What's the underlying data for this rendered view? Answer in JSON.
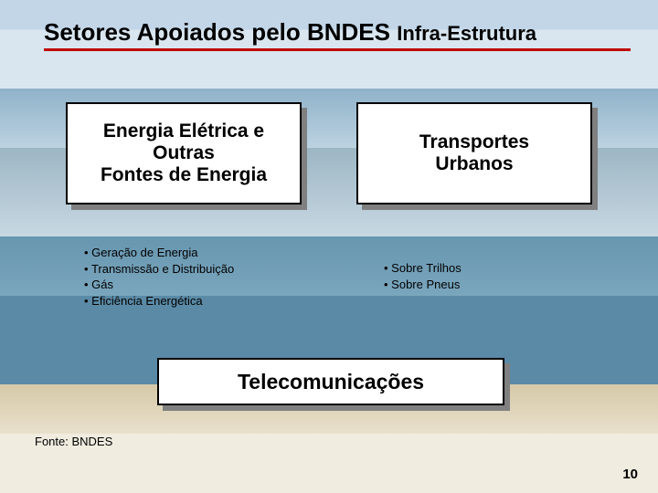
{
  "title": {
    "main": "Setores Apoiados pelo BNDES",
    "sub": "Infra-Estrutura"
  },
  "colors": {
    "underline": "#c00000",
    "box_bg": "#ffffff",
    "box_border": "#000000",
    "box_shadow": "#808080"
  },
  "boxes": {
    "energy": {
      "line1": "Energia Elétrica e",
      "line2": "Outras",
      "line3": "Fontes de Energia"
    },
    "transport": {
      "line1": "Transportes",
      "line2": "Urbanos"
    },
    "telecom": {
      "line1": "Telecomunicações"
    }
  },
  "bullets": {
    "energy": [
      "Geração de Energia",
      "Transmissão e Distribuição",
      "Gás",
      "Eficiência Energética"
    ],
    "transport": [
      "Sobre Trilhos",
      "Sobre Pneus"
    ]
  },
  "source": "Fonte: BNDES",
  "page_number": "10"
}
